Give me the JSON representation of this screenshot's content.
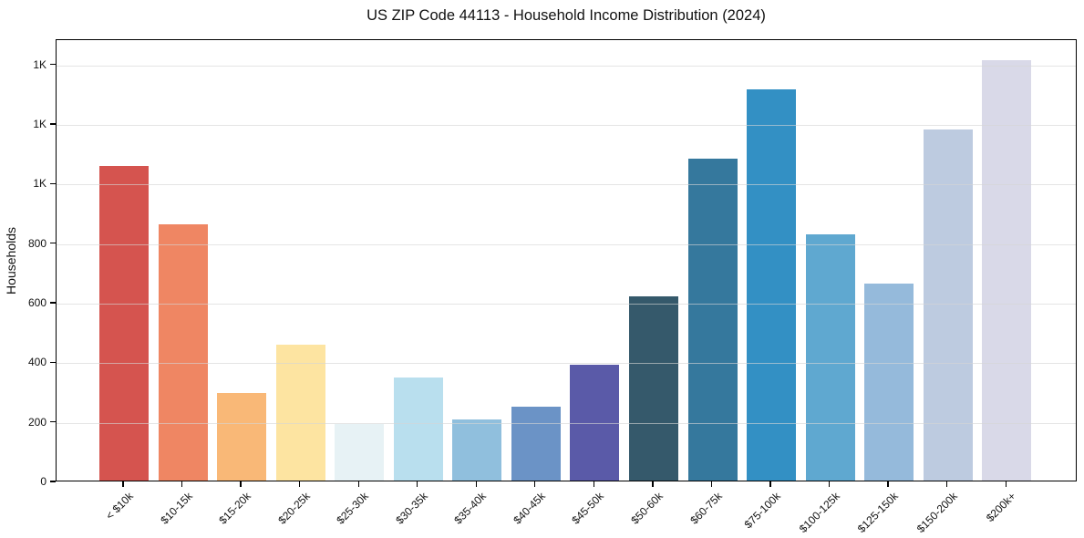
{
  "chart_data": {
    "type": "bar",
    "title": "US ZIP Code 44113 - Household Income Distribution (2024)",
    "xlabel": "",
    "ylabel": "Households",
    "categories": [
      "< $10k",
      "$10-15k",
      "$15-20k",
      "$20-25k",
      "$25-30k",
      "$30-35k",
      "$35-40k",
      "$40-45k",
      "$45-50k",
      "$50-60k",
      "$60-75k",
      "$75-100k",
      "$100-125k",
      "$125-150k",
      "$150-200k",
      "$200k+"
    ],
    "values": [
      1056,
      862,
      294,
      456,
      189,
      347,
      204,
      248,
      389,
      620,
      1082,
      1315,
      826,
      663,
      1179,
      1411
    ],
    "bar_colors": [
      "#d5544f",
      "#ef8663",
      "#f9b877",
      "#fde4a1",
      "#e7f2f5",
      "#b9dfee",
      "#90bfdd",
      "#6b93c6",
      "#5a5aa8",
      "#35596b",
      "#35789d",
      "#3390c4",
      "#5fa8d0",
      "#95badb",
      "#bdcbe0",
      "#d9d9e8"
    ],
    "ylim": [
      0,
      1485
    ],
    "ytick_values": [
      0,
      200,
      400,
      600,
      800,
      1000,
      1200,
      1400
    ],
    "ytick_labels": [
      "0",
      "200",
      "400",
      "600",
      "800",
      "1K",
      "1K",
      "1K"
    ],
    "xtick_rotation_deg": 45,
    "grid": "horizontal",
    "grid_color": "#d5d5d5",
    "grid_over_bars": true,
    "legend": "none",
    "background": "#ffffff",
    "axis_color": "#000000",
    "text_color": "#111111"
  }
}
